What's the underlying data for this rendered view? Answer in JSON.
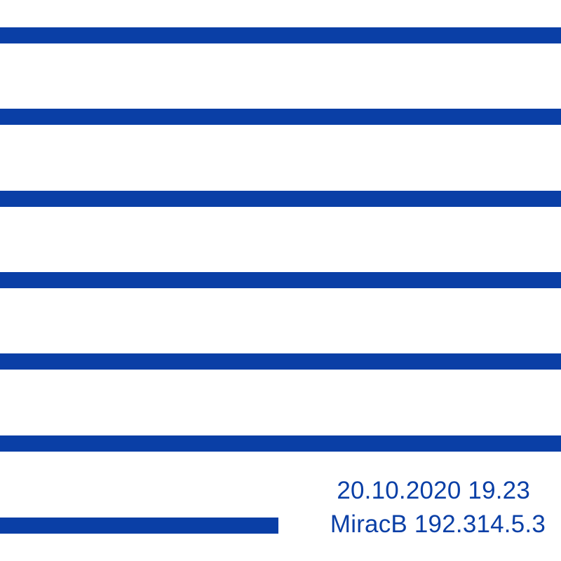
{
  "caption": {
    "datetime": "20.10.2020 19.23",
    "identity": "MiracB 192.314.5.3"
  },
  "colors": {
    "stripe": "#0a3fa6",
    "text": "#0a3fa6",
    "background": "#ffffff"
  }
}
